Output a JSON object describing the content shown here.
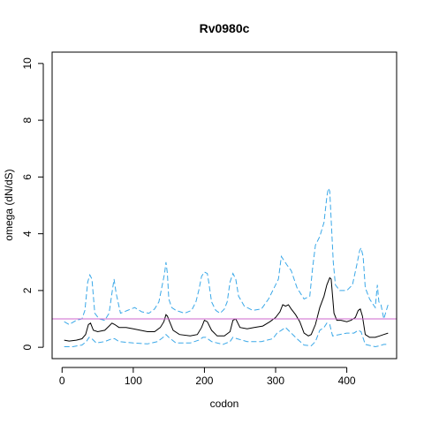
{
  "chart_data": {
    "type": "line",
    "title": "Rv0980c",
    "xlabel": "codon",
    "ylabel": "omega (dN/dS)",
    "xlim": [
      -14,
      470
    ],
    "ylim": [
      -0.4,
      10.4
    ],
    "x_ticks": [
      0,
      100,
      200,
      300,
      400
    ],
    "y_ticks": [
      0,
      2,
      4,
      6,
      8,
      10
    ],
    "reference_line": {
      "y": 1,
      "color": "#cc66cc"
    },
    "grid": false,
    "legend": "none",
    "series": [
      {
        "role": "upper-bound",
        "style": "dashed",
        "color": "#3aa8e8",
        "x": [
          3,
          10,
          20,
          28,
          32,
          36,
          39,
          42,
          46,
          52,
          60,
          66,
          70,
          73,
          76,
          82,
          92,
          102,
          112,
          122,
          130,
          136,
          140,
          144,
          146,
          148,
          150,
          154,
          160,
          172,
          182,
          188,
          192,
          196,
          200,
          204,
          206,
          210,
          216,
          222,
          228,
          232,
          236,
          240,
          244,
          248,
          256,
          268,
          280,
          290,
          298,
          304,
          308,
          312,
          316,
          322,
          330,
          340,
          348,
          352,
          356,
          362,
          368,
          372,
          374,
          376,
          378,
          381,
          384,
          390,
          400,
          408,
          414,
          418,
          420,
          423,
          426,
          432,
          440,
          443,
          445,
          448,
          452,
          458
        ],
        "values": [
          0.9,
          0.8,
          0.95,
          1.0,
          1.3,
          2.3,
          2.55,
          2.4,
          1.2,
          1.0,
          0.95,
          1.2,
          1.9,
          2.4,
          1.9,
          1.2,
          1.3,
          1.4,
          1.25,
          1.2,
          1.35,
          1.6,
          2.1,
          2.6,
          3.0,
          2.6,
          1.7,
          1.4,
          1.3,
          1.2,
          1.3,
          1.6,
          2.0,
          2.5,
          2.65,
          2.6,
          2.3,
          1.6,
          1.3,
          1.2,
          1.35,
          1.6,
          2.3,
          2.6,
          2.4,
          1.8,
          1.45,
          1.3,
          1.35,
          1.7,
          2.1,
          2.4,
          3.2,
          3.05,
          2.9,
          2.7,
          2.1,
          1.7,
          1.8,
          2.8,
          3.6,
          3.9,
          4.4,
          5.3,
          5.6,
          5.5,
          4.5,
          3.0,
          2.2,
          2.0,
          2.0,
          2.2,
          2.9,
          3.4,
          3.5,
          3.2,
          2.1,
          1.7,
          1.4,
          2.2,
          1.6,
          1.5,
          1.0,
          1.5
        ]
      },
      {
        "role": "estimate",
        "style": "solid",
        "color": "#000000",
        "x": [
          3,
          10,
          20,
          28,
          33,
          37,
          40,
          44,
          50,
          60,
          66,
          70,
          74,
          80,
          90,
          100,
          110,
          120,
          130,
          138,
          143,
          146,
          148,
          151,
          156,
          165,
          180,
          190,
          196,
          200,
          204,
          210,
          218,
          228,
          236,
          240,
          244,
          250,
          260,
          270,
          282,
          292,
          300,
          306,
          310,
          314,
          318,
          322,
          328,
          334,
          340,
          346,
          350,
          356,
          362,
          368,
          372,
          376,
          378,
          380,
          382,
          386,
          392,
          400,
          406,
          412,
          416,
          419,
          422,
          426,
          432,
          440,
          446,
          452,
          458
        ],
        "values": [
          0.25,
          0.22,
          0.25,
          0.3,
          0.45,
          0.8,
          0.85,
          0.6,
          0.55,
          0.6,
          0.75,
          0.85,
          0.8,
          0.7,
          0.7,
          0.65,
          0.6,
          0.55,
          0.55,
          0.7,
          0.9,
          1.15,
          1.1,
          0.9,
          0.6,
          0.45,
          0.4,
          0.45,
          0.7,
          0.95,
          0.9,
          0.6,
          0.4,
          0.4,
          0.55,
          0.95,
          1.0,
          0.7,
          0.65,
          0.7,
          0.75,
          0.9,
          1.05,
          1.25,
          1.5,
          1.45,
          1.5,
          1.35,
          1.15,
          0.9,
          0.5,
          0.4,
          0.45,
          0.8,
          1.4,
          1.8,
          2.2,
          2.45,
          2.4,
          1.8,
          1.2,
          0.95,
          0.95,
          0.9,
          0.95,
          1.05,
          1.3,
          1.35,
          1.1,
          0.45,
          0.35,
          0.35,
          0.4,
          0.45,
          0.5
        ]
      },
      {
        "role": "lower-bound",
        "style": "dashed",
        "color": "#3aa8e8",
        "x": [
          3,
          15,
          28,
          34,
          38,
          42,
          48,
          60,
          70,
          74,
          80,
          100,
          120,
          134,
          142,
          146,
          150,
          160,
          180,
          192,
          198,
          202,
          210,
          226,
          236,
          240,
          246,
          260,
          280,
          296,
          302,
          308,
          314,
          320,
          330,
          340,
          350,
          356,
          362,
          368,
          372,
          376,
          380,
          390,
          400,
          410,
          416,
          420,
          426,
          440,
          446,
          452,
          458
        ],
        "values": [
          0.02,
          0.02,
          0.08,
          0.2,
          0.35,
          0.3,
          0.15,
          0.2,
          0.3,
          0.3,
          0.2,
          0.15,
          0.12,
          0.2,
          0.35,
          0.45,
          0.35,
          0.15,
          0.15,
          0.25,
          0.35,
          0.35,
          0.2,
          0.1,
          0.2,
          0.35,
          0.3,
          0.2,
          0.2,
          0.3,
          0.5,
          0.6,
          0.7,
          0.55,
          0.3,
          0.08,
          0.05,
          0.2,
          0.6,
          0.7,
          0.85,
          0.8,
          0.4,
          0.45,
          0.5,
          0.5,
          0.6,
          0.55,
          0.1,
          0.02,
          0.05,
          0.1,
          0.1
        ]
      }
    ]
  }
}
